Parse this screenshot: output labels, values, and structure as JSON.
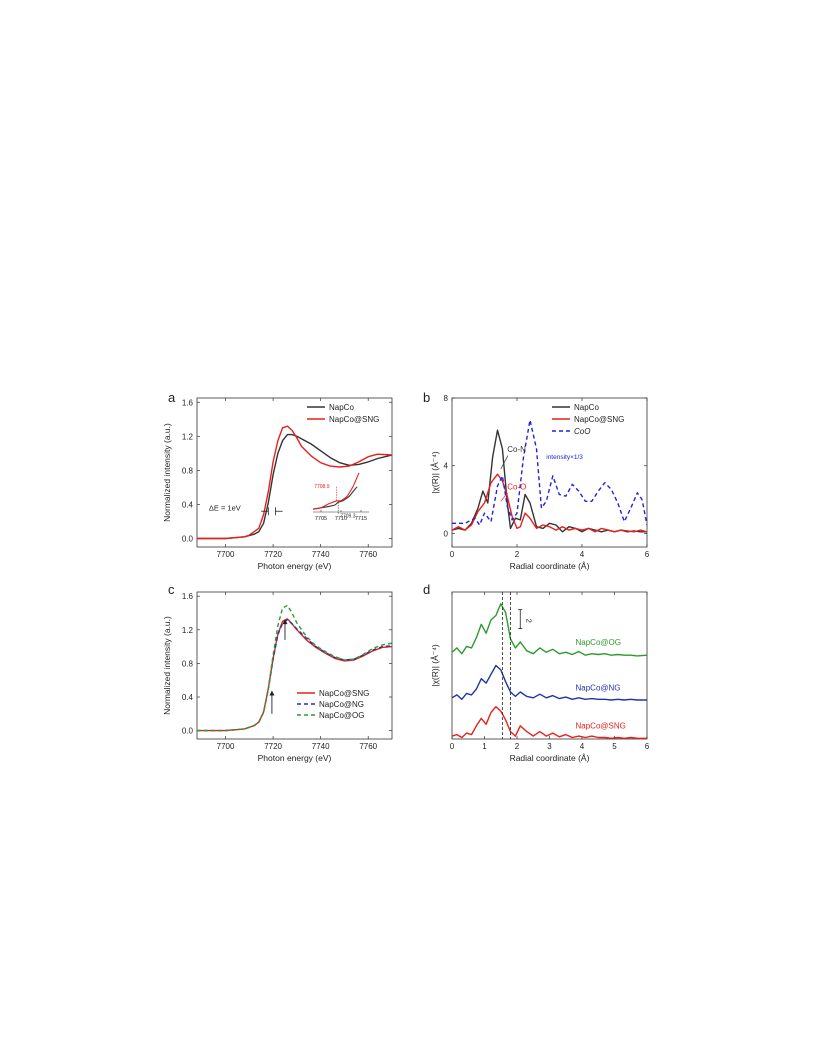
{
  "chart_data": [
    {
      "panel": "a",
      "type": "line",
      "xlabel": "Photon energy (eV)",
      "ylabel": "Normalized intensity (a.u.)",
      "xlim": [
        7688,
        7770
      ],
      "ylim": [
        -0.1,
        1.65
      ],
      "xticks": [
        7700,
        7720,
        7740,
        7760
      ],
      "yticks": [
        0.0,
        0.4,
        0.8,
        1.2,
        1.6
      ],
      "ytick_labels": [
        "0.0",
        "0.4",
        "0.8",
        "1.2",
        "1.6"
      ],
      "legend": "top-right",
      "series": [
        {
          "name": "NapCo",
          "color": "#333333",
          "dash": "",
          "x": [
            7688,
            7700,
            7708,
            7712,
            7714,
            7716,
            7718,
            7720,
            7722,
            7724,
            7726,
            7728,
            7730,
            7732,
            7736,
            7740,
            7744,
            7748,
            7752,
            7756,
            7760,
            7764,
            7770
          ],
          "y": [
            0.0,
            0.0,
            0.02,
            0.05,
            0.08,
            0.18,
            0.42,
            0.75,
            1.0,
            1.15,
            1.22,
            1.22,
            1.2,
            1.17,
            1.11,
            1.03,
            0.95,
            0.89,
            0.86,
            0.87,
            0.9,
            0.94,
            0.98
          ]
        },
        {
          "name": "NapCo@SNG",
          "color": "#e8201c",
          "dash": "",
          "x": [
            7688,
            7700,
            7708,
            7710,
            7712,
            7714,
            7716,
            7718,
            7720,
            7722,
            7724,
            7726,
            7728,
            7730,
            7732,
            7736,
            7740,
            7744,
            7748,
            7752,
            7756,
            7760,
            7764,
            7770
          ],
          "y": [
            0.0,
            0.0,
            0.02,
            0.04,
            0.08,
            0.12,
            0.28,
            0.55,
            0.9,
            1.15,
            1.3,
            1.32,
            1.27,
            1.18,
            1.08,
            0.97,
            0.89,
            0.85,
            0.84,
            0.85,
            0.9,
            0.96,
            0.99,
            0.98
          ]
        }
      ],
      "annotations": [
        "ΔE = 1eV"
      ],
      "inset": {
        "xticks": [
          7705,
          7710,
          7715
        ],
        "xlim": [
          7703,
          7717
        ],
        "ylim": [
          0.0,
          0.3
        ],
        "labels": [
          {
            "text": "7708.9",
            "color": "#e8201c"
          },
          {
            "text": "7709.3",
            "color": "#333333"
          }
        ],
        "series": [
          {
            "name": "NapCo",
            "color": "#333333",
            "x": [
              7703,
              7705,
              7707,
              7708.5,
              7709.3,
              7710.5,
              7712,
              7714
            ],
            "y": [
              0.02,
              0.03,
              0.04,
              0.05,
              0.07,
              0.08,
              0.11,
              0.18
            ]
          },
          {
            "name": "NapCo@SNG",
            "color": "#e8201c",
            "x": [
              7703,
              7705,
              7707,
              7708.9,
              7710,
              7711.5,
              7713,
              7714.5
            ],
            "y": [
              0.02,
              0.03,
              0.06,
              0.08,
              0.08,
              0.11,
              0.18,
              0.28
            ]
          }
        ]
      }
    },
    {
      "panel": "b",
      "type": "line",
      "xlabel": "Radial coordinate (Å)",
      "ylabel": "|χ(R)| (Å⁻⁴)",
      "xlim": [
        0,
        6
      ],
      "ylim": [
        -0.8,
        8
      ],
      "xticks": [
        0,
        2,
        4,
        6
      ],
      "yticks": [
        0,
        4,
        8
      ],
      "legend": "top-right",
      "series": [
        {
          "name": "NapCo",
          "color": "#333333",
          "dash": "",
          "x": [
            0,
            0.2,
            0.4,
            0.6,
            0.8,
            0.95,
            1.1,
            1.25,
            1.4,
            1.55,
            1.7,
            1.8,
            1.95,
            2.1,
            2.25,
            2.4,
            2.6,
            2.8,
            3.0,
            3.2,
            3.4,
            3.6,
            3.8,
            4.0,
            4.2,
            4.4,
            4.6,
            4.8,
            5.0,
            5.2,
            5.4,
            5.6,
            5.8,
            6.0
          ],
          "y": [
            0.2,
            0.3,
            0.2,
            0.6,
            1.5,
            2.5,
            1.8,
            4.5,
            6.1,
            5.0,
            1.8,
            0.3,
            0.9,
            0.8,
            2.3,
            1.8,
            0.4,
            0.3,
            0.6,
            0.5,
            0.1,
            0.4,
            0.3,
            0.1,
            0.3,
            0.2,
            0.1,
            0.2,
            0.1,
            0.2,
            0.1,
            0.15,
            0.1,
            0.1
          ]
        },
        {
          "name": "NapCo@SNG",
          "color": "#e8201c",
          "dash": "",
          "x": [
            0,
            0.2,
            0.4,
            0.6,
            0.8,
            1.0,
            1.2,
            1.4,
            1.55,
            1.7,
            1.85,
            2.0,
            2.1,
            2.25,
            2.4,
            2.6,
            2.8,
            3.0,
            3.2,
            3.4,
            3.6,
            3.8,
            4.0,
            4.2,
            4.4,
            4.6,
            4.8,
            5.0,
            5.2,
            5.4,
            5.6,
            5.8,
            6.0
          ],
          "y": [
            0.2,
            0.4,
            0.2,
            0.5,
            1.3,
            1.8,
            3.0,
            3.5,
            3.1,
            2.2,
            1.0,
            0.3,
            0.4,
            1.2,
            0.9,
            0.3,
            0.5,
            0.4,
            0.2,
            0.4,
            0.2,
            0.3,
            0.2,
            0.3,
            0.1,
            0.3,
            0.2,
            0.1,
            0.2,
            0.15,
            0.1,
            0.2,
            0.1
          ]
        },
        {
          "name": "CoO",
          "color": "#2222dd",
          "dash": "4,3",
          "x": [
            0,
            0.4,
            0.7,
            0.85,
            1.0,
            1.2,
            1.4,
            1.55,
            1.7,
            1.85,
            2.0,
            2.2,
            2.4,
            2.6,
            2.75,
            2.9,
            3.1,
            3.3,
            3.5,
            3.7,
            3.9,
            4.1,
            4.3,
            4.5,
            4.7,
            4.9,
            5.1,
            5.3,
            5.5,
            5.7,
            5.85,
            6.0
          ],
          "y": [
            0.6,
            0.6,
            0.9,
            0.5,
            1.2,
            0.7,
            2.8,
            3.4,
            1.6,
            0.8,
            1.2,
            4.5,
            6.7,
            5.0,
            1.5,
            1.9,
            3.4,
            2.3,
            2.2,
            2.9,
            2.5,
            1.9,
            1.9,
            2.5,
            3.0,
            2.6,
            1.8,
            0.7,
            1.5,
            2.4,
            2.0,
            0.5
          ]
        }
      ],
      "annotations": [
        {
          "text": "Co-N",
          "color": "#333333"
        },
        {
          "text": "Co-O",
          "color": "#e8201c"
        },
        {
          "text": "intensity×1/3",
          "color": "#2222dd"
        }
      ]
    },
    {
      "panel": "c",
      "type": "line",
      "xlabel": "Photon energy (eV)",
      "ylabel": "Normalized intensity (a.u.)",
      "xlim": [
        7688,
        7770
      ],
      "ylim": [
        -0.1,
        1.65
      ],
      "xticks": [
        7700,
        7720,
        7740,
        7760
      ],
      "yticks": [
        0.0,
        0.4,
        0.8,
        1.2,
        1.6
      ],
      "ytick_labels": [
        "0.0",
        "0.4",
        "0.8",
        "1.2",
        "1.6"
      ],
      "legend": "bottom-right",
      "series": [
        {
          "name": "NapCo@SNG",
          "color": "#e8201c",
          "dash": "",
          "x": [
            7688,
            7700,
            7708,
            7712,
            7714,
            7716,
            7718,
            7720,
            7722,
            7724,
            7726,
            7728,
            7730,
            7734,
            7738,
            7742,
            7746,
            7750,
            7754,
            7758,
            7762,
            7766,
            7770
          ],
          "y": [
            0.0,
            0.0,
            0.02,
            0.06,
            0.1,
            0.22,
            0.5,
            0.86,
            1.15,
            1.3,
            1.33,
            1.27,
            1.2,
            1.08,
            0.99,
            0.92,
            0.86,
            0.83,
            0.84,
            0.89,
            0.95,
            0.99,
            1.0
          ]
        },
        {
          "name": "NapCo@NG",
          "color": "#2233aa",
          "dash": "4,3",
          "x": [
            7688,
            7700,
            7708,
            7712,
            7714,
            7716,
            7718,
            7720,
            7722,
            7724,
            7726,
            7728,
            7730,
            7734,
            7738,
            7742,
            7746,
            7750,
            7754,
            7758,
            7762,
            7766,
            7770
          ],
          "y": [
            0.0,
            0.0,
            0.02,
            0.06,
            0.1,
            0.22,
            0.49,
            0.85,
            1.14,
            1.28,
            1.32,
            1.27,
            1.21,
            1.1,
            1.0,
            0.93,
            0.87,
            0.84,
            0.85,
            0.9,
            0.96,
            1.0,
            1.01
          ]
        },
        {
          "name": "NapCo@OG",
          "color": "#2e9a2e",
          "dash": "4,3",
          "x": [
            7688,
            7700,
            7708,
            7712,
            7714,
            7716,
            7718,
            7720,
            7722,
            7724,
            7726,
            7728,
            7730,
            7734,
            7738,
            7742,
            7746,
            7750,
            7754,
            7758,
            7762,
            7766,
            7770
          ],
          "y": [
            0.0,
            0.0,
            0.02,
            0.06,
            0.1,
            0.22,
            0.5,
            0.9,
            1.25,
            1.46,
            1.49,
            1.4,
            1.28,
            1.12,
            1.01,
            0.94,
            0.88,
            0.84,
            0.85,
            0.91,
            0.98,
            1.02,
            1.04
          ]
        }
      ]
    },
    {
      "panel": "d",
      "type": "line",
      "xlabel": "Radial coordinate (Å)",
      "ylabel": "|χ(R)| (Å⁻⁴)",
      "xlim": [
        0,
        6
      ],
      "ylim": [
        0,
        10
      ],
      "xticks": [
        0,
        1,
        2,
        3,
        4,
        5,
        6
      ],
      "scale_bar_label": "2",
      "reference_lines_x": [
        1.55,
        1.8
      ],
      "series": [
        {
          "name": "NapCo@OG",
          "color": "#2e9a2e",
          "dash": "",
          "offset": 5.6,
          "x": [
            0,
            0.15,
            0.3,
            0.45,
            0.6,
            0.75,
            0.9,
            1.05,
            1.2,
            1.35,
            1.5,
            1.65,
            1.8,
            1.95,
            2.1,
            2.3,
            2.5,
            2.7,
            2.9,
            3.1,
            3.3,
            3.5,
            3.7,
            3.9,
            4.1,
            4.3,
            4.5,
            4.7,
            4.9,
            5.1,
            5.3,
            5.5,
            5.7,
            6.0
          ],
          "y": [
            0.3,
            0.6,
            0.2,
            0.7,
            0.6,
            1.3,
            2.2,
            1.6,
            2.5,
            2.8,
            3.6,
            3.0,
            1.2,
            0.6,
            1.0,
            0.4,
            0.2,
            0.6,
            0.3,
            0.5,
            0.2,
            0.3,
            0.15,
            0.35,
            0.1,
            0.2,
            0.15,
            0.2,
            0.1,
            0.15,
            0.1,
            0.1,
            0.05,
            0.1
          ]
        },
        {
          "name": "NapCo@NG",
          "color": "#2233aa",
          "dash": "",
          "offset": 2.6,
          "x": [
            0,
            0.15,
            0.3,
            0.45,
            0.6,
            0.75,
            0.9,
            1.05,
            1.2,
            1.35,
            1.5,
            1.65,
            1.8,
            1.95,
            2.1,
            2.3,
            2.5,
            2.7,
            2.9,
            3.1,
            3.3,
            3.5,
            3.7,
            3.9,
            4.1,
            4.3,
            4.5,
            4.7,
            4.9,
            5.1,
            5.3,
            5.5,
            5.7,
            6.0
          ],
          "y": [
            0.2,
            0.4,
            0.1,
            0.5,
            0.4,
            0.8,
            1.5,
            1.2,
            1.8,
            2.4,
            2.1,
            1.3,
            0.6,
            0.3,
            0.6,
            0.3,
            0.2,
            0.45,
            0.2,
            0.35,
            0.15,
            0.25,
            0.1,
            0.2,
            0.1,
            0.15,
            0.1,
            0.1,
            0.05,
            0.1,
            0.05,
            0.1,
            0.05,
            0.05
          ]
        },
        {
          "name": "NapCo@SNG",
          "color": "#e8201c",
          "dash": "",
          "offset": 0.0,
          "x": [
            0,
            0.15,
            0.3,
            0.45,
            0.6,
            0.75,
            0.9,
            1.05,
            1.2,
            1.35,
            1.5,
            1.65,
            1.8,
            1.95,
            2.1,
            2.3,
            2.5,
            2.7,
            2.9,
            3.1,
            3.3,
            3.5,
            3.7,
            3.9,
            4.1,
            4.3,
            4.5,
            4.7,
            4.9,
            5.1,
            5.3,
            5.5,
            5.7,
            6.0
          ],
          "y": [
            0.2,
            0.3,
            0.1,
            0.4,
            0.3,
            0.9,
            1.4,
            1.0,
            1.8,
            2.2,
            1.9,
            1.3,
            0.5,
            0.2,
            0.9,
            0.5,
            0.2,
            0.5,
            0.2,
            0.4,
            0.15,
            0.3,
            0.1,
            0.2,
            0.1,
            0.2,
            0.1,
            0.1,
            0.05,
            0.1,
            0.05,
            0.1,
            0.05,
            0.05
          ]
        }
      ]
    }
  ],
  "panel_letters": [
    "a",
    "b",
    "c",
    "d"
  ]
}
